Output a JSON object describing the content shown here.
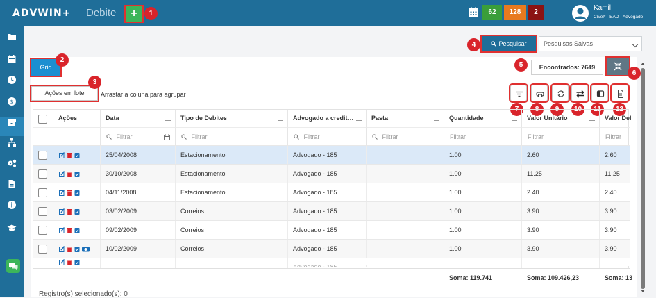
{
  "topbar": {
    "logo": "ADVWIN+",
    "page_title": "Debite",
    "add_label": "+",
    "badges": [
      {
        "value": "62",
        "color": "#3a9e3a"
      },
      {
        "value": "128",
        "color": "#e87a1f"
      },
      {
        "value": "2",
        "color": "#8b1313"
      }
    ],
    "user_name": "Kamil",
    "user_role": "Cível* - EAD - Advogado"
  },
  "markers": [
    "1",
    "2",
    "3",
    "4",
    "5",
    "6",
    "7",
    "8",
    "9",
    "10",
    "11",
    "12"
  ],
  "search": {
    "button_label": "Pesquisar",
    "saved_select_value": "Pesquisas Salvas"
  },
  "toolbar": {
    "grid_label": "Grid",
    "found_label": "Encontrados: 7649",
    "batch_label": "Ações em lote",
    "group_hint": "Arrastar a coluna para agrupar"
  },
  "grid": {
    "columns": [
      "Ações",
      "Data",
      "Tipo de Debites",
      "Advogado a credit…",
      "Pasta",
      "Quantidade",
      "Valor Unitário",
      "Valor Del"
    ],
    "filter_placeholder": "Filtrar",
    "rows": [
      {
        "data": "25/04/2008",
        "tipo": "Estacionamento",
        "advogado": "Advogado - 185",
        "pasta": "",
        "quantidade": "1.00",
        "valor_unitario": "2.60",
        "valor_debite": "2.60"
      },
      {
        "data": "30/10/2008",
        "tipo": "Estacionamento",
        "advogado": "Advogado - 185",
        "pasta": "",
        "quantidade": "1.00",
        "valor_unitario": "11.25",
        "valor_debite": "11.25"
      },
      {
        "data": "04/11/2008",
        "tipo": "Estacionamento",
        "advogado": "Advogado - 185",
        "pasta": "",
        "quantidade": "1.00",
        "valor_unitario": "2.40",
        "valor_debite": "2.40"
      },
      {
        "data": "03/02/2009",
        "tipo": "Correios",
        "advogado": "Advogado - 185",
        "pasta": "",
        "quantidade": "1.00",
        "valor_unitario": "3.90",
        "valor_debite": "3.90"
      },
      {
        "data": "09/02/2009",
        "tipo": "Correios",
        "advogado": "Advogado - 185",
        "pasta": "",
        "quantidade": "1.00",
        "valor_unitario": "3.90",
        "valor_debite": "3.90"
      },
      {
        "data": "10/02/2009",
        "tipo": "Correios",
        "advogado": "Advogado - 185",
        "pasta": "",
        "quantidade": "1.00",
        "valor_unitario": "3.90",
        "valor_debite": "3.90"
      }
    ],
    "footer": {
      "soma_quantidade": "Soma: 119.741",
      "soma_valor_unitario": "Soma: 109.426,23",
      "soma_valor_debite": "Soma: 13"
    }
  },
  "status": {
    "selected": "Registro(s) selecionado(s): 0"
  },
  "colors": {
    "brand": "#1f6e99",
    "grid_button": "#1b8fd1",
    "selected_row": "#dbe9f8",
    "marker": "#d9242b"
  }
}
